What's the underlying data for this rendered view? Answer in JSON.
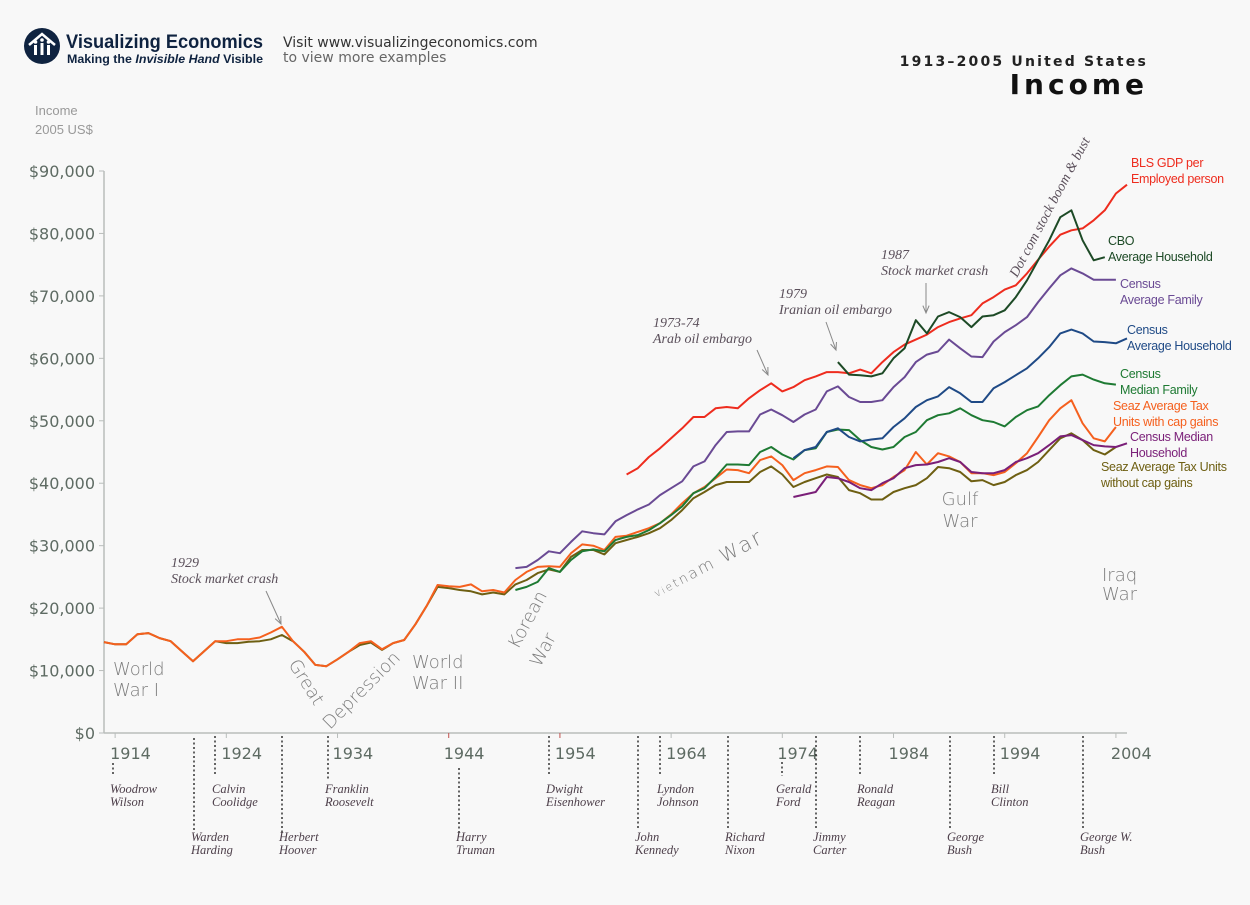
{
  "header": {
    "brand": "Visualizing Economics",
    "tagline_pre": "Making the ",
    "tagline_em": "Invisible Hand",
    "tagline_post": " Visible",
    "visit_line1": "Visit www.visualizingeconomics.com",
    "visit_line2": "to view more examples",
    "logo_icon": "house-with-people-icon"
  },
  "chart_data": {
    "type": "line",
    "title": "Income",
    "subtitle": "1913–2005 United States",
    "ylabel_line1": "Income",
    "ylabel_line2": "2005 US$",
    "ylim": [
      0,
      90000
    ],
    "xlim": [
      1913,
      2005
    ],
    "y_ticks": [
      "$0",
      "$10,000",
      "$20,000",
      "$30,000",
      "$40,000",
      "$50,000",
      "$60,000",
      "$70,000",
      "$80,000",
      "$90,000"
    ],
    "x_ticks": [
      "1914",
      "1924",
      "1934",
      "1944",
      "1954",
      "1964",
      "1974",
      "1984",
      "1994",
      "2004"
    ],
    "grid": false,
    "legend_placement": "right end labels",
    "series": [
      {
        "name": "BLS GDP per Employed person",
        "label_lines": [
          "BLS GDP per",
          "Employed person"
        ],
        "color": "#ee2c1e",
        "start_year": 1960,
        "values": [
          41400,
          42400,
          44200,
          45600,
          47200,
          48800,
          50600,
          50600,
          52000,
          52200,
          52000,
          53600,
          54900,
          56000,
          54700,
          55400,
          56500,
          57100,
          57800,
          57800,
          57600,
          58200,
          57600,
          59400,
          61000,
          62200,
          63000,
          63800,
          65000,
          65800,
          66400,
          66900,
          68800,
          69800,
          71000,
          71700,
          73600,
          75800,
          77900,
          79800,
          80500,
          80800,
          82100,
          83700,
          86400,
          87800
        ]
      },
      {
        "name": "CBO Average Household",
        "label_lines": [
          "CBO",
          "Average Household"
        ],
        "color": "#1d4a26",
        "start_year": 1979,
        "values": [
          59400,
          57400,
          57300,
          57100,
          57600,
          60000,
          61600,
          66100,
          64000,
          66700,
          67400,
          66600,
          65000,
          66700,
          66900,
          67700,
          69800,
          72500,
          75700,
          78900,
          82600,
          83700,
          78900,
          75700,
          76200
        ]
      },
      {
        "name": "Census Average Family",
        "label_lines": [
          "Census",
          "Average Family"
        ],
        "color": "#6a4a94",
        "start_year": 1950,
        "values": [
          26400,
          26600,
          27700,
          29100,
          28800,
          30600,
          32300,
          32000,
          31800,
          33900,
          34900,
          35800,
          36600,
          38100,
          39200,
          40300,
          42700,
          43500,
          46100,
          48200,
          48300,
          48300,
          51000,
          51800,
          50900,
          49800,
          51000,
          51800,
          54700,
          55500,
          53800,
          53000,
          53000,
          53300,
          55400,
          57000,
          59400,
          60600,
          61100,
          63000,
          61600,
          60300,
          60200,
          62700,
          64200,
          65300,
          66600,
          69000,
          71200,
          73300,
          74400,
          73600,
          72600,
          72600,
          72600
        ]
      },
      {
        "name": "Census Average Household",
        "label_lines": [
          "Census",
          "Average Household"
        ],
        "color": "#1f4a86",
        "start_year": 1975,
        "values": [
          44000,
          45300,
          45800,
          48200,
          48800,
          47400,
          46700,
          47000,
          47200,
          49000,
          50400,
          52200,
          53300,
          53900,
          55400,
          54400,
          53000,
          53000,
          55200,
          56200,
          57300,
          58400,
          60000,
          61800,
          64000,
          64600,
          64000,
          62700,
          62600,
          62400,
          63200
        ]
      },
      {
        "name": "Census Median Family",
        "label_lines": [
          "Census",
          "Median Family"
        ],
        "color": "#1e7a33",
        "start_year": 1950,
        "values": [
          22900,
          23400,
          24200,
          26400,
          25800,
          27700,
          29100,
          29400,
          29100,
          30900,
          31400,
          31700,
          32500,
          33600,
          34900,
          36300,
          38400,
          39200,
          41000,
          43000,
          43000,
          42900,
          45000,
          45800,
          44600,
          43800,
          45300,
          45600,
          48200,
          48600,
          48500,
          46900,
          45800,
          45400,
          45800,
          47400,
          48200,
          50100,
          50900,
          51200,
          52000,
          50900,
          50100,
          49800,
          49100,
          50600,
          51700,
          52300,
          54100,
          55700,
          57100,
          57400,
          56600,
          56000,
          55800
        ]
      },
      {
        "name": "Seaz Average Tax Units with cap gains",
        "label_lines": [
          "Seaz Average Tax",
          "Units with cap gains"
        ],
        "color": "#f5601e",
        "start_year": 1913,
        "values": [
          14560,
          14200,
          14200,
          15800,
          16000,
          15200,
          14700,
          13100,
          11500,
          13100,
          14700,
          14700,
          15000,
          15000,
          15300,
          16100,
          17000,
          14700,
          13000,
          10900,
          10700,
          11800,
          13000,
          14400,
          14700,
          13400,
          14400,
          14900,
          17400,
          20300,
          23700,
          23500,
          23400,
          23800,
          22700,
          22900,
          22500,
          24500,
          25800,
          26600,
          26700,
          26600,
          28800,
          30200,
          30000,
          29300,
          31400,
          31600,
          32200,
          32800,
          33600,
          35000,
          36800,
          38400,
          39400,
          40800,
          42200,
          42100,
          41600,
          43700,
          44300,
          42900,
          40500,
          41600,
          42100,
          42700,
          42600,
          40500,
          39700,
          39200,
          39700,
          41000,
          42100,
          45000,
          43000,
          44800,
          44300,
          43400,
          41600,
          41600,
          41300,
          41800,
          43200,
          44800,
          47400,
          50100,
          52000,
          53300,
          49600,
          47200,
          46700,
          49000
        ]
      },
      {
        "name": "Census Median Household",
        "label_lines": [
          "Census Median",
          "Household"
        ],
        "color": "#7a1f78",
        "start_year": 1975,
        "values": [
          37800,
          38200,
          38600,
          41000,
          40800,
          40200,
          39200,
          38900,
          40000,
          40800,
          42400,
          42900,
          43000,
          43400,
          44000,
          43400,
          41800,
          41600,
          41600,
          42100,
          43400,
          44000,
          44800,
          46100,
          47500,
          47700,
          46900,
          46100,
          45900,
          45800,
          46400
        ]
      },
      {
        "name": "Seaz Average Tax Units without cap gains",
        "label_lines": [
          "Seaz Average Tax Units",
          "without cap gains"
        ],
        "color": "#6e5f12",
        "start_year": 1913,
        "values": [
          14560,
          14200,
          14200,
          15800,
          16000,
          15200,
          14700,
          13100,
          11500,
          13100,
          14700,
          14400,
          14400,
          14600,
          14700,
          15000,
          15700,
          14700,
          13000,
          10900,
          10700,
          11800,
          13000,
          14100,
          14500,
          13300,
          14400,
          14900,
          17400,
          20300,
          23400,
          23200,
          22900,
          22700,
          22200,
          22500,
          22200,
          23800,
          24500,
          25600,
          26200,
          25800,
          28200,
          29300,
          29300,
          28600,
          30400,
          30900,
          31400,
          32000,
          32800,
          34100,
          35700,
          37600,
          38600,
          39700,
          40200,
          40200,
          40200,
          41800,
          42700,
          41400,
          39400,
          40200,
          40800,
          41400,
          41000,
          38900,
          38400,
          37400,
          37400,
          38600,
          39200,
          39700,
          40800,
          42600,
          42400,
          41800,
          40300,
          40500,
          39700,
          40200,
          41300,
          42100,
          43400,
          45300,
          47200,
          48000,
          46900,
          45300,
          44600,
          45800
        ]
      }
    ],
    "annotations": [
      {
        "year_label": "1929",
        "text": "Stock market crash"
      },
      {
        "year_label": "1973-74",
        "text": "Arab oil embargo"
      },
      {
        "year_label": "1979",
        "text": "Iranian oil embargo"
      },
      {
        "year_label": "1987",
        "text": "Stock market crash"
      },
      {
        "text": "Dot com stock boom & bust"
      }
    ],
    "wars": [
      {
        "lines": [
          "World",
          "War I"
        ]
      },
      {
        "lines": [
          "Great",
          "Depression"
        ]
      },
      {
        "lines": [
          "World",
          "War II"
        ]
      },
      {
        "lines": [
          "Korean",
          "War"
        ]
      },
      {
        "lines": [
          "Vietnam War"
        ]
      },
      {
        "lines": [
          "Gulf",
          "War"
        ]
      },
      {
        "lines": [
          "Iraq",
          "War"
        ]
      }
    ],
    "presidents": [
      {
        "first": "Woodrow",
        "last": "Wilson"
      },
      {
        "first": "Warden",
        "last": "Harding"
      },
      {
        "first": "Calvin",
        "last": "Coolidge"
      },
      {
        "first": "Herbert",
        "last": "Hoover"
      },
      {
        "first": "Franklin",
        "last": "Roosevelt"
      },
      {
        "first": "Harry",
        "last": "Truman"
      },
      {
        "first": "Dwight",
        "last": "Eisenhower"
      },
      {
        "first": "John",
        "last": "Kennedy"
      },
      {
        "first": "Lyndon",
        "last": "Johnson"
      },
      {
        "first": "Richard",
        "last": "Nixon"
      },
      {
        "first": "Gerald",
        "last": "Ford"
      },
      {
        "first": "Jimmy",
        "last": "Carter"
      },
      {
        "first": "Ronald",
        "last": "Reagan"
      },
      {
        "first": "George",
        "last": "Bush"
      },
      {
        "first": "Bill",
        "last": "Clinton"
      },
      {
        "first": "George W.",
        "last": "Bush"
      }
    ]
  }
}
